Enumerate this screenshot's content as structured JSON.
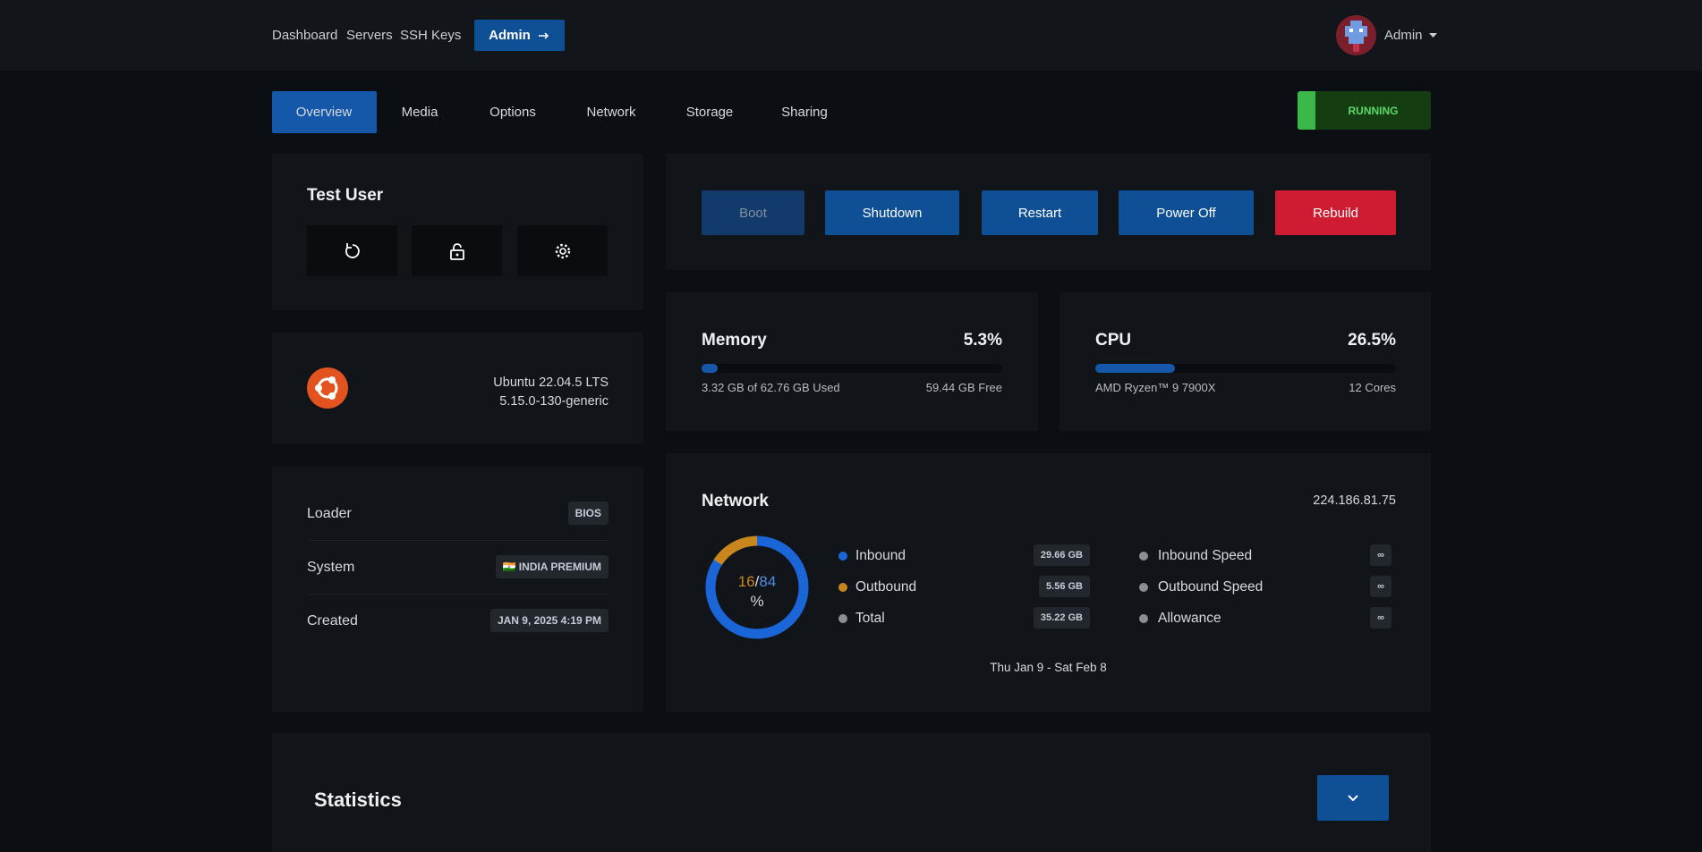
{
  "nav": {
    "links": [
      "Dashboard",
      "Servers",
      "SSH Keys"
    ],
    "admin_button": "Admin",
    "user": "Admin"
  },
  "tabs": [
    "Overview",
    "Media",
    "Options",
    "Network",
    "Storage",
    "Sharing"
  ],
  "status": "RUNNING",
  "user_card": {
    "title": "Test User"
  },
  "os": {
    "name": "Ubuntu 22.04.5 LTS",
    "kernel": "5.15.0-130-generic"
  },
  "info": [
    {
      "label": "Loader",
      "value": "BIOS"
    },
    {
      "label": "System",
      "value": "🇮🇳 INDIA PREMIUM"
    },
    {
      "label": "Created",
      "value": "JAN 9, 2025 4:19 PM"
    }
  ],
  "actions": [
    "Boot",
    "Shutdown",
    "Restart",
    "Power Off",
    "Rebuild"
  ],
  "memory": {
    "title": "Memory",
    "percent": {
      "value": 5.3,
      "label": "5.3%"
    },
    "used": "3.32 GB of 62.76 GB Used",
    "free": "59.44 GB Free"
  },
  "cpu": {
    "title": "CPU",
    "percent": {
      "value": 26.5,
      "label": "26.5%"
    },
    "model": "AMD Ryzen™ 9 7900X",
    "cores": "12 Cores"
  },
  "network": {
    "title": "Network",
    "ip": "224.186.81.75",
    "usage": {
      "outbound": 16,
      "separator": "/",
      "inbound": 84,
      "unit": "%"
    },
    "traffic": [
      {
        "label": "Inbound",
        "value": "29.66 GB"
      },
      {
        "label": "Outbound",
        "value": "5.56 GB"
      },
      {
        "label": "Total",
        "value": "35.22 GB"
      }
    ],
    "limits": [
      {
        "label": "Inbound Speed",
        "value": "∞"
      },
      {
        "label": "Outbound Speed",
        "value": "∞"
      },
      {
        "label": "Allowance",
        "value": "∞"
      }
    ],
    "period": "Thu Jan 9 - Sat Feb 8"
  },
  "statistics": {
    "title": "Statistics"
  }
}
